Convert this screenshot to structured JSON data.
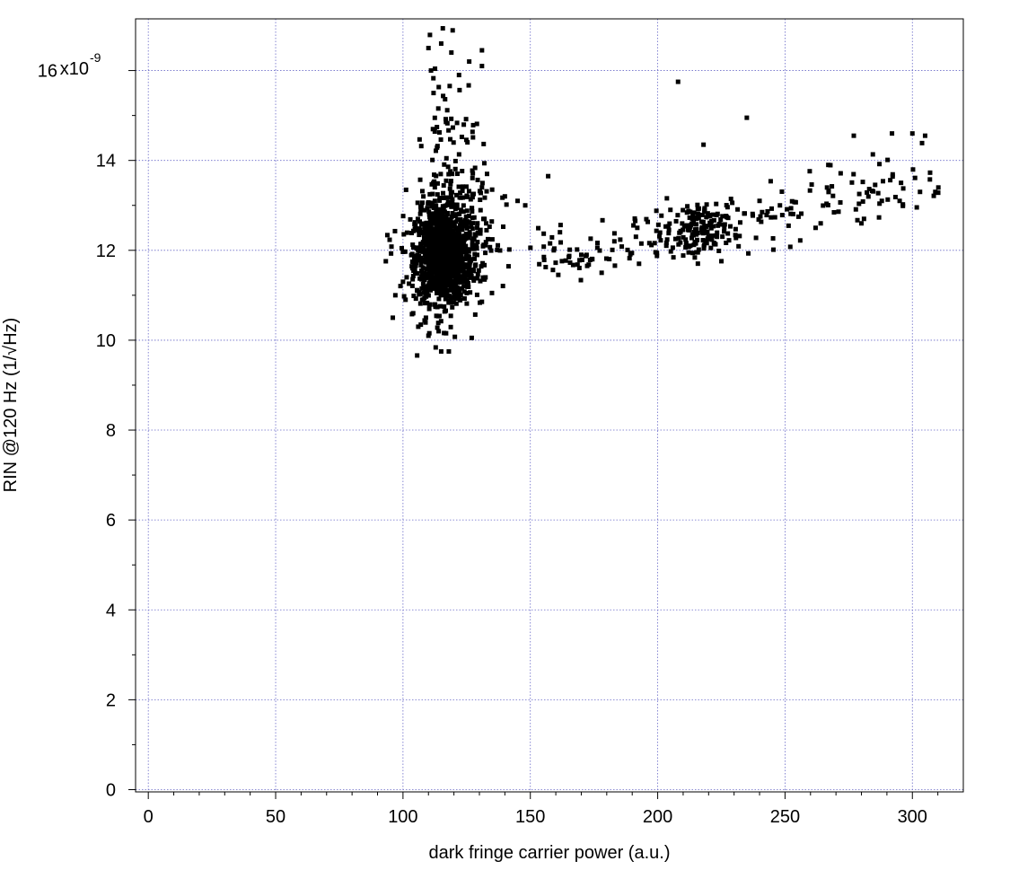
{
  "chart_data": {
    "type": "scatter",
    "title": "",
    "xlabel": "dark fringe carrier power (a.u.)",
    "ylabel": "RIN @120 Hz (1/√Hz)",
    "y_multiplier_label": "x10",
    "y_multiplier_exponent": "-9",
    "xlim": [
      -5,
      320
    ],
    "ylim": [
      -0.05,
      17.15
    ],
    "x_ticks": [
      0,
      50,
      100,
      150,
      200,
      250,
      300
    ],
    "x_tick_labels": [
      "0",
      "50",
      "100",
      "150",
      "200",
      "250",
      "300"
    ],
    "y_ticks": [
      0,
      2,
      4,
      6,
      8,
      10,
      12,
      14,
      16
    ],
    "y_tick_labels": [
      "0",
      "2",
      "4",
      "6",
      "8",
      "10",
      "12",
      "14",
      "16"
    ],
    "grid": true,
    "grid_color": "#6a6ac8",
    "marker_color": "#000000",
    "series": [
      {
        "clusters": [
          {
            "cx": 116,
            "cy": 11.85,
            "sx": 5.5,
            "sy": 0.5,
            "n": 1100
          },
          {
            "cx": 117,
            "cy": 12.3,
            "sx": 9,
            "sy": 0.9,
            "n": 220
          },
          {
            "cx": 118,
            "cy": 13.8,
            "sx": 5,
            "sy": 1.2,
            "n": 80
          },
          {
            "cx": 128,
            "cy": 12.3,
            "sx": 6,
            "sy": 0.6,
            "n": 60
          },
          {
            "cx": 215,
            "cy": 12.4,
            "sx": 6,
            "sy": 0.3,
            "n": 140
          }
        ],
        "trend_points": {
          "x_from": 150,
          "x_to": 312,
          "y_from": 11.8,
          "y_to": 13.6,
          "spread": 0.35,
          "n": 190
        },
        "x": [
          115,
          119,
          126,
          131,
          131,
          122,
          111,
          110,
          112,
          208,
          235,
          218,
          277,
          292,
          300,
          305,
          109,
          96,
          100,
          97,
          115,
          118,
          114,
          110,
          106,
          104,
          101,
          131,
          135,
          133,
          140,
          148,
          145,
          157,
          170,
          178,
          183,
          192,
          205,
          240,
          241,
          262,
          248,
          264,
          267,
          281,
          280,
          288,
          295,
          303,
          309
        ],
        "y": [
          16.6,
          16.4,
          16.2,
          16.45,
          16.1,
          15.9,
          16.0,
          16.5,
          15.5,
          15.75,
          14.95,
          14.35,
          14.55,
          14.6,
          14.6,
          14.55,
          10.5,
          10.5,
          11.3,
          11.0,
          9.75,
          9.75,
          10.2,
          10.1,
          10.3,
          10.6,
          10.9,
          13.4,
          13.35,
          13.7,
          13.2,
          13.0,
          13.1,
          13.65,
          11.9,
          11.5,
          12.2,
          12.5,
          12.9,
          13.1,
          12.85,
          12.5,
          13.0,
          12.6,
          13.9,
          12.7,
          12.6,
          13.1,
          13.1,
          13.3,
          13.3
        ]
      }
    ]
  }
}
